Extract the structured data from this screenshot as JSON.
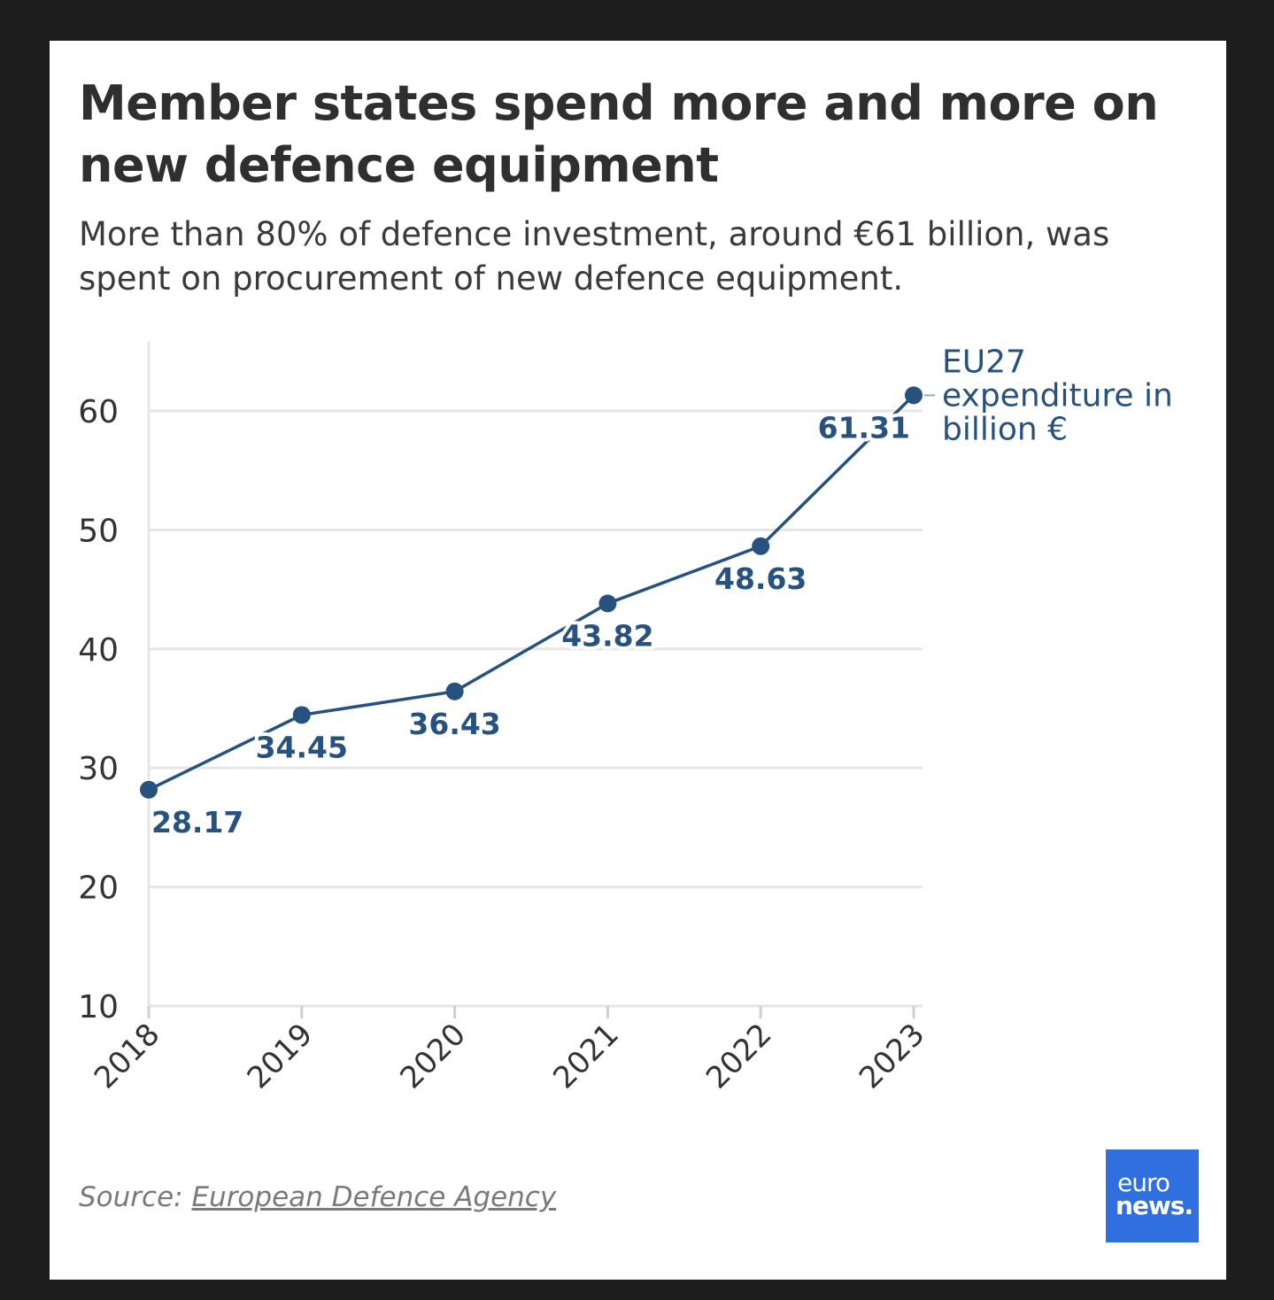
{
  "title": "Member states spend more and more on new defence equipment",
  "subtitle": "More than 80% of defence investment, around €61 billion, was spent on procurement of new defence equipment.",
  "source": {
    "prefix": "Source: ",
    "link_text": "European Defence Agency"
  },
  "logo": {
    "line1": "euro",
    "line2": "news."
  },
  "colors": {
    "series": "#27527f",
    "grid": "#e6e6e6",
    "logo_bg": "#2f6fe0"
  },
  "chart_data": {
    "type": "line",
    "x": [
      "2018",
      "2019",
      "2020",
      "2021",
      "2022",
      "2023"
    ],
    "series": [
      {
        "name": "EU27 expenditure in billion €",
        "name_lines": [
          "EU27",
          "expenditure in",
          "billion €"
        ],
        "values": [
          28.17,
          34.45,
          36.43,
          43.82,
          48.63,
          61.31
        ],
        "labels": [
          "28.17",
          "34.45",
          "36.43",
          "43.82",
          "48.63",
          "61.31"
        ]
      }
    ],
    "yticks": [
      10,
      20,
      30,
      40,
      50,
      60
    ],
    "ylim": [
      10,
      65.8
    ],
    "grid": true,
    "legend": "direct label at line end"
  }
}
